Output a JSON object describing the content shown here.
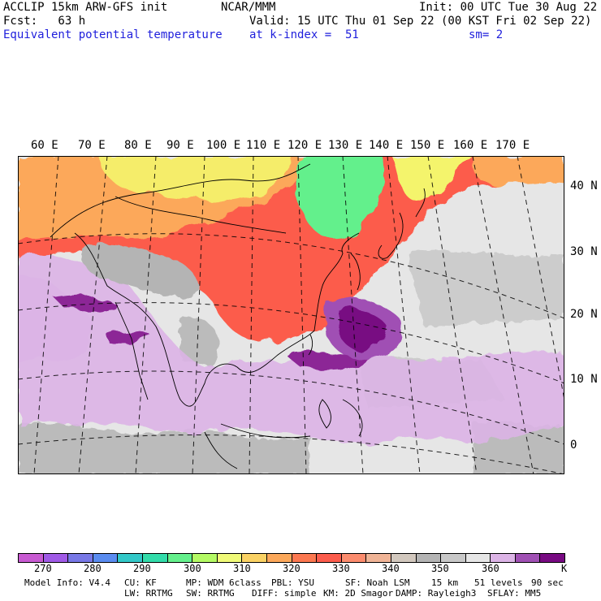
{
  "header": {
    "line1_left": "ACCLIP 15km ARW-GFS init",
    "line1_center": "NCAR/MMM",
    "line1_right": "Init: 00 UTC Tue 30 Aug 22",
    "line2_left": "Fcst:   63 h",
    "line2_right": "Valid: 15 UTC Thu 01 Sep 22 (00 KST Fri 02 Sep 22)",
    "line3_left": "Equivalent potential temperature",
    "line3_center": "at k-index =  51",
    "line3_right": "sm= 2"
  },
  "map": {
    "longitude_labels": [
      "60 E",
      "70 E",
      "80 E",
      "90 E",
      "100 E",
      "110 E",
      "120 E",
      "130 E",
      "140 E",
      "150 E",
      "160 E",
      "170 E"
    ],
    "latitude_labels": [
      "40 N",
      "30 N",
      "20 N",
      "10 N",
      "0"
    ],
    "colors": {
      "warm_low": "#f4f46c",
      "warm_mid": "#fca85a",
      "warm_high": "#fc5c4c",
      "cool_green": "#64f08c",
      "mid_gray": "#b4b4b4",
      "light_gray": "#e6e6e6",
      "lavender": "#dcb4e6",
      "purple": "#8c2896"
    }
  },
  "colorbar": {
    "colors": [
      "#c85ad2",
      "#a05ae6",
      "#7878e6",
      "#5a8cf0",
      "#32c8c8",
      "#32dcaa",
      "#64f08c",
      "#b4fa64",
      "#f0fa78",
      "#fad264",
      "#fca85a",
      "#fc7850",
      "#fc5c4c",
      "#fc8c6e",
      "#f0b496",
      "#d2c8be",
      "#b4b4b4",
      "#c8c8c8",
      "#e6e6e6",
      "#dcb4e6",
      "#a050b4",
      "#780a82"
    ],
    "labels": [
      "270",
      "280",
      "290",
      "300",
      "310",
      "320",
      "330",
      "340",
      "350",
      "360"
    ],
    "unit": "K"
  },
  "footer": {
    "row1": [
      "Model Info: V4.4",
      "CU: KF",
      "MP: WDM 6class",
      "PBL: YSU",
      "SF: Noah LSM",
      "15 km",
      "51 levels",
      "90 sec"
    ],
    "row2": [
      "LW: RRTMG",
      "SW: RRTMG",
      "DIFF: simple",
      "KM: 2D Smagor",
      "DAMP: Rayleigh3",
      "SFLAY: MM5"
    ]
  }
}
